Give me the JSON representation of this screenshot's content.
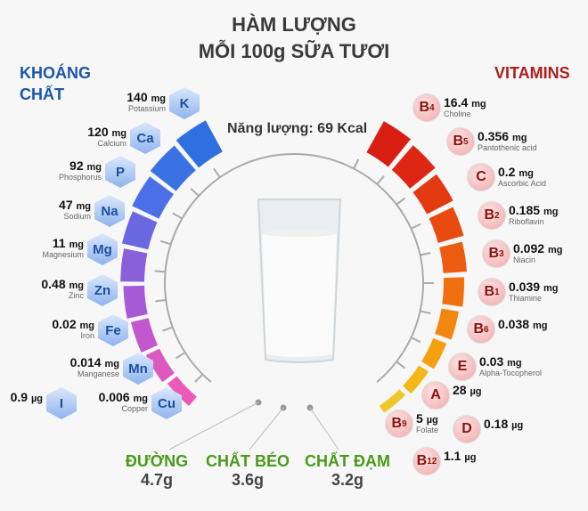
{
  "title": {
    "line1": "HÀM LƯỢNG",
    "line2": "MỖI 100g SỮA TƯƠI"
  },
  "minerals_heading": {
    "line1": "KHOÁNG",
    "line2": "CHẤT"
  },
  "vitamins_heading": "VITAMINS",
  "energy": "Năng lượng: 69 Kcal",
  "colors": {
    "minerals": "#2f6fe0",
    "vitamins": "#e0261a",
    "macro": "#4a9a1a",
    "heading_blue": "#1b56a8",
    "heading_red": "#b01c1c"
  },
  "minerals": [
    {
      "symbol": "K",
      "amount": "140",
      "unit": "mg",
      "name": "Potassium"
    },
    {
      "symbol": "Ca",
      "amount": "120",
      "unit": "mg",
      "name": "Calcium"
    },
    {
      "symbol": "P",
      "amount": "92",
      "unit": "mg",
      "name": "Phosphorus"
    },
    {
      "symbol": "Na",
      "amount": "47",
      "unit": "mg",
      "name": "Sodium"
    },
    {
      "symbol": "Mg",
      "amount": "11",
      "unit": "mg",
      "name": "Magnesium"
    },
    {
      "symbol": "Zn",
      "amount": "0.48",
      "unit": "mg",
      "name": "Zinc"
    },
    {
      "symbol": "Fe",
      "amount": "0.02",
      "unit": "mg",
      "name": "Iron"
    },
    {
      "symbol": "Mn",
      "amount": "0.014",
      "unit": "mg",
      "name": "Manganese"
    },
    {
      "symbol": "Cu",
      "amount": "0.006",
      "unit": "mg",
      "name": "Copper"
    },
    {
      "symbol": "I",
      "amount": "0.9",
      "unit": "µg",
      "name": ""
    }
  ],
  "vitamins": [
    {
      "letter": "B",
      "sub": "4",
      "amount": "16.4",
      "unit": "mg",
      "name": "Choline"
    },
    {
      "letter": "B",
      "sub": "5",
      "amount": "0.356",
      "unit": "mg",
      "name": "Pantothenic acid"
    },
    {
      "letter": "C",
      "sub": "",
      "amount": "0.2",
      "unit": "mg",
      "name": "Ascorbic Acid"
    },
    {
      "letter": "B",
      "sub": "2",
      "amount": "0.185",
      "unit": "mg",
      "name": "Riboflavin"
    },
    {
      "letter": "B",
      "sub": "3",
      "amount": "0.092",
      "unit": "mg",
      "name": "Niacin"
    },
    {
      "letter": "B",
      "sub": "1",
      "amount": "0.039",
      "unit": "mg",
      "name": "Thiamine"
    },
    {
      "letter": "B",
      "sub": "6",
      "amount": "0.038",
      "unit": "mg",
      "name": ""
    },
    {
      "letter": "E",
      "sub": "",
      "amount": "0.03",
      "unit": "mg",
      "name": "Alpha-Tocopherol"
    },
    {
      "letter": "A",
      "sub": "",
      "amount": "28",
      "unit": "µg",
      "name": ""
    },
    {
      "letter": "B",
      "sub": "9",
      "amount": "5",
      "unit": "µg",
      "name": "Folate"
    },
    {
      "letter": "D",
      "sub": "",
      "amount": "0.18",
      "unit": "µg",
      "name": ""
    },
    {
      "letter": "B",
      "sub": "12",
      "amount": "1.1",
      "unit": "µg",
      "name": ""
    }
  ],
  "macros": [
    {
      "name": "ĐƯỜNG",
      "value": "4.7g"
    },
    {
      "name": "CHẤT BÉO",
      "value": "3.6g"
    },
    {
      "name": "CHẤT ĐẠM",
      "value": "3.2g"
    }
  ]
}
